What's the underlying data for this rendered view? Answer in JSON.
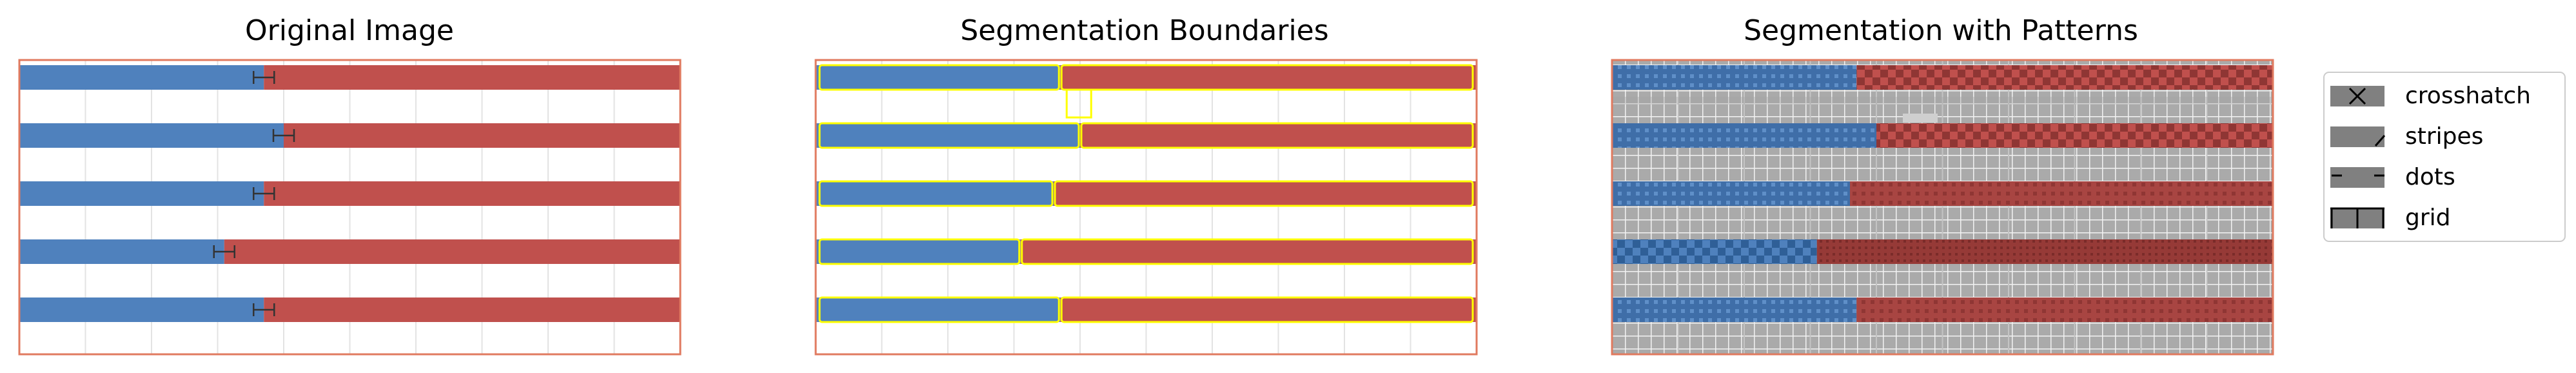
{
  "colors": {
    "blue": "#4f81bd",
    "red": "#c0504d",
    "frame": "#e07a5f",
    "boundary": "#ffff00",
    "pattern_gray": "#aaaaaa",
    "legend_swatch": "#808080"
  },
  "chart_data": [
    {
      "type": "bar",
      "title": "Original Image",
      "orientation": "horizontal-stacked",
      "rows": [
        {
          "blue": 0.37,
          "red": 0.63
        },
        {
          "blue": 0.4,
          "red": 0.6
        },
        {
          "blue": 0.37,
          "red": 0.63
        },
        {
          "blue": 0.31,
          "red": 0.69
        },
        {
          "blue": 0.37,
          "red": 0.63
        }
      ],
      "error_bars": true,
      "grid": true
    },
    {
      "type": "bar",
      "title": "Segmentation Boundaries",
      "orientation": "horizontal-stacked",
      "rows": [
        {
          "blue": 0.37,
          "red": 0.63
        },
        {
          "blue": 0.4,
          "red": 0.6
        },
        {
          "blue": 0.36,
          "red": 0.64
        },
        {
          "blue": 0.31,
          "red": 0.69
        },
        {
          "blue": 0.37,
          "red": 0.63
        }
      ],
      "boundary_color": "yellow",
      "grid": true
    },
    {
      "type": "bar",
      "title": "Segmentation with Patterns",
      "orientation": "horizontal-stacked",
      "rows": [
        {
          "blue": 0.37,
          "red": 0.63,
          "pattern": "dots"
        },
        {
          "blue": 0.4,
          "red": 0.6,
          "pattern": "dots"
        },
        {
          "blue": 0.36,
          "red": 0.64,
          "pattern": "dots"
        },
        {
          "blue": 0.31,
          "red": 0.69,
          "pattern": "crosshatch"
        },
        {
          "blue": 0.37,
          "red": 0.63,
          "pattern": "dots"
        }
      ],
      "background_pattern": "grid",
      "grid": true
    }
  ],
  "legend": {
    "placement": "right",
    "items": [
      {
        "label": "crosshatch",
        "symbol": "x"
      },
      {
        "label": "stripes",
        "symbol": "/"
      },
      {
        "label": "dots",
        "symbol": "-"
      },
      {
        "label": "grid",
        "symbol": "+"
      }
    ]
  }
}
